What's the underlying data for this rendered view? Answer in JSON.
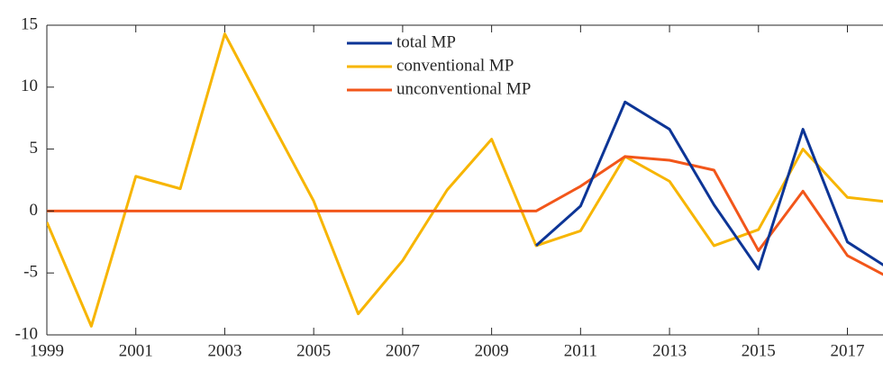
{
  "chart_data": {
    "type": "line",
    "x": [
      1999,
      2000,
      2001,
      2002,
      2003,
      2004,
      2005,
      2006,
      2007,
      2008,
      2009,
      2010,
      2011,
      2012,
      2013,
      2014,
      2015,
      2016,
      2017,
      2018
    ],
    "series": [
      {
        "name": "total MP",
        "color": "#0d3596",
        "values": [
          null,
          null,
          null,
          null,
          null,
          null,
          null,
          null,
          null,
          null,
          null,
          -2.8,
          0.4,
          8.8,
          6.6,
          0.5,
          -4.7,
          6.6,
          -2.5,
          -4.8
        ]
      },
      {
        "name": "conventional MP",
        "color": "#f7b500",
        "values": [
          -0.9,
          -9.3,
          2.8,
          1.8,
          14.3,
          7.5,
          0.8,
          -8.3,
          -4.0,
          1.7,
          5.8,
          -2.8,
          -1.6,
          4.4,
          2.4,
          -2.8,
          -1.5,
          5.0,
          1.1,
          0.7
        ]
      },
      {
        "name": "unconventional MP",
        "color": "#f2561a",
        "values": [
          0,
          0,
          0,
          0,
          0,
          0,
          0,
          0,
          0,
          0,
          0,
          0,
          2.0,
          4.4,
          4.1,
          3.3,
          -3.2,
          1.6,
          -3.6,
          -5.5
        ]
      }
    ],
    "xlim": [
      1999,
      2017.8
    ],
    "xticks": [
      1999,
      2001,
      2003,
      2005,
      2007,
      2009,
      2011,
      2013,
      2015,
      2017
    ],
    "ylim": [
      -10,
      15
    ],
    "yticks": [
      -10,
      -5,
      0,
      5,
      10,
      15
    ]
  }
}
